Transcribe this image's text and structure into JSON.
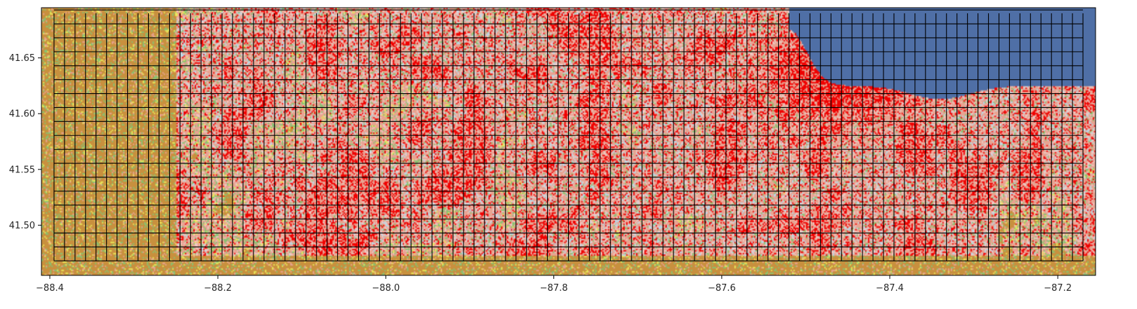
{
  "chart_data": {
    "type": "heatmap",
    "title": "",
    "xlabel": "",
    "ylabel": "",
    "xlim": [
      -88.41,
      -87.155
    ],
    "ylim": [
      41.455,
      41.695
    ],
    "x_ticks": [
      {
        "value": -88.4,
        "label": "−88.4"
      },
      {
        "value": -88.2,
        "label": "−88.2"
      },
      {
        "value": -88.0,
        "label": "−88.0"
      },
      {
        "value": -87.8,
        "label": "−87.8"
      },
      {
        "value": -87.6,
        "label": "−87.6"
      },
      {
        "value": -87.4,
        "label": "−87.4"
      },
      {
        "value": -87.2,
        "label": "−87.2"
      }
    ],
    "y_ticks": [
      {
        "value": 41.5,
        "label": "41.50"
      },
      {
        "value": 41.55,
        "label": "41.55"
      },
      {
        "value": 41.6,
        "label": "41.60"
      },
      {
        "value": 41.65,
        "label": "41.65"
      }
    ],
    "grid_overlay": {
      "x_start": -88.395,
      "x_end": -87.17,
      "y_start": 41.468,
      "y_end": 41.69,
      "step_deg": 0.0125
    },
    "land_cover_colors": {
      "water": "#4f6fa6",
      "developed_high": "#f00000",
      "developed_medium": "#e8a391",
      "developed_low": "#eec8c3",
      "cultivated": "#c8903e",
      "grassland": "#88c270",
      "hay_pasture": "#e8e85a",
      "wetland": "#b8d8e8"
    }
  }
}
